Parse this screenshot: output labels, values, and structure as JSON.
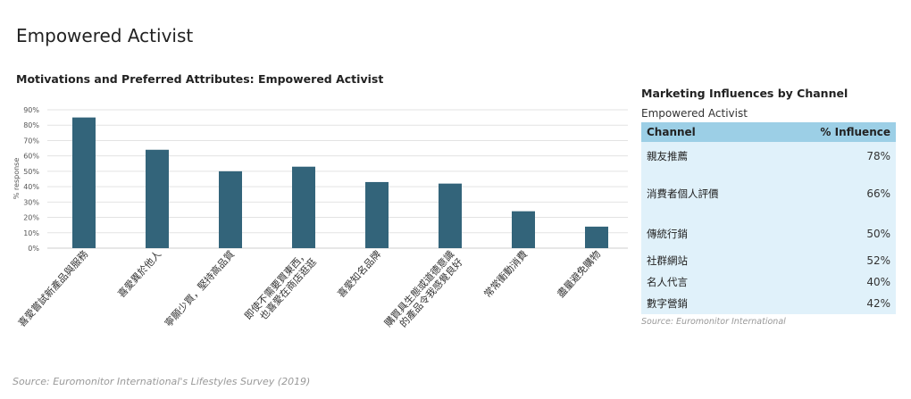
{
  "page": {
    "title": "Empowered Activist",
    "source": "Source: Euromonitor International's Lifestyles Survey (2019)"
  },
  "chart_data": {
    "type": "bar",
    "title": "Motivations and Preferred Attributes: Empowered Activist",
    "ylabel": "% response",
    "xlabel": "",
    "ylim": [
      0,
      90
    ],
    "yticks": [
      0,
      10,
      20,
      30,
      40,
      50,
      60,
      70,
      80,
      90
    ],
    "ytick_labels": [
      "0%",
      "10%",
      "20%",
      "30%",
      "40%",
      "50%",
      "60%",
      "70%",
      "80%",
      "90%"
    ],
    "grid": true,
    "color": "#33647a",
    "categories": [
      [
        "喜愛嘗試新產品與服務"
      ],
      [
        "喜愛異於他人"
      ],
      [
        "寧願少買，堅持高品質"
      ],
      [
        "即使不需要買東西，",
        "也喜愛在商店逛逛"
      ],
      [
        "喜愛知名品牌"
      ],
      [
        "購買具生態或道德意識",
        "的產品令我感覺良好"
      ],
      [
        "常常衝動消費"
      ],
      [
        "盡量避免購物"
      ]
    ],
    "values": [
      85,
      64,
      50,
      53,
      43,
      42,
      24,
      14
    ]
  },
  "influences": {
    "title": "Marketing Influences by Channel",
    "subtitle": "Empowered Activist",
    "header_channel": "Channel",
    "header_influence": "% Influence",
    "rows": [
      {
        "channel": "親友推薦",
        "value": "78%"
      },
      {
        "channel": "消費者個人評價",
        "value": "66%"
      },
      {
        "channel": "傳統行銷",
        "value": "50%"
      },
      {
        "channel": "社群網站",
        "value": "52%"
      },
      {
        "channel": "名人代言",
        "value": "40%"
      },
      {
        "channel": "數字營銷",
        "value": "42%"
      }
    ],
    "source": "Source: Euromonitor International"
  }
}
